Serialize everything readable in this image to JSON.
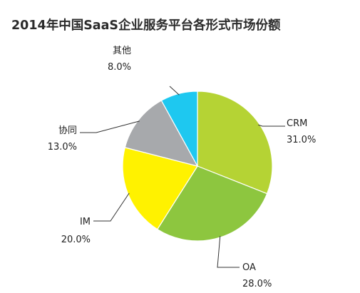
{
  "chart_data": {
    "type": "pie",
    "title": "2014年中国SaaS企业服务平台各形式市场份额",
    "slices": [
      {
        "label": "CRM",
        "value": 31.0,
        "value_text": "31.0%",
        "color": "#b5d334"
      },
      {
        "label": "OA",
        "value": 28.0,
        "value_text": "28.0%",
        "color": "#8dc63f"
      },
      {
        "label": "IM",
        "value": 20.0,
        "value_text": "20.0%",
        "color": "#fff200"
      },
      {
        "label": "协同",
        "value": 13.0,
        "value_text": "13.0%",
        "color": "#a7a9ac"
      },
      {
        "label": "其他",
        "value": 8.0,
        "value_text": "8.0%",
        "color": "#1ec8f0"
      }
    ],
    "start_angle": "12 o'clock",
    "direction": "clockwise",
    "legend": "none"
  }
}
